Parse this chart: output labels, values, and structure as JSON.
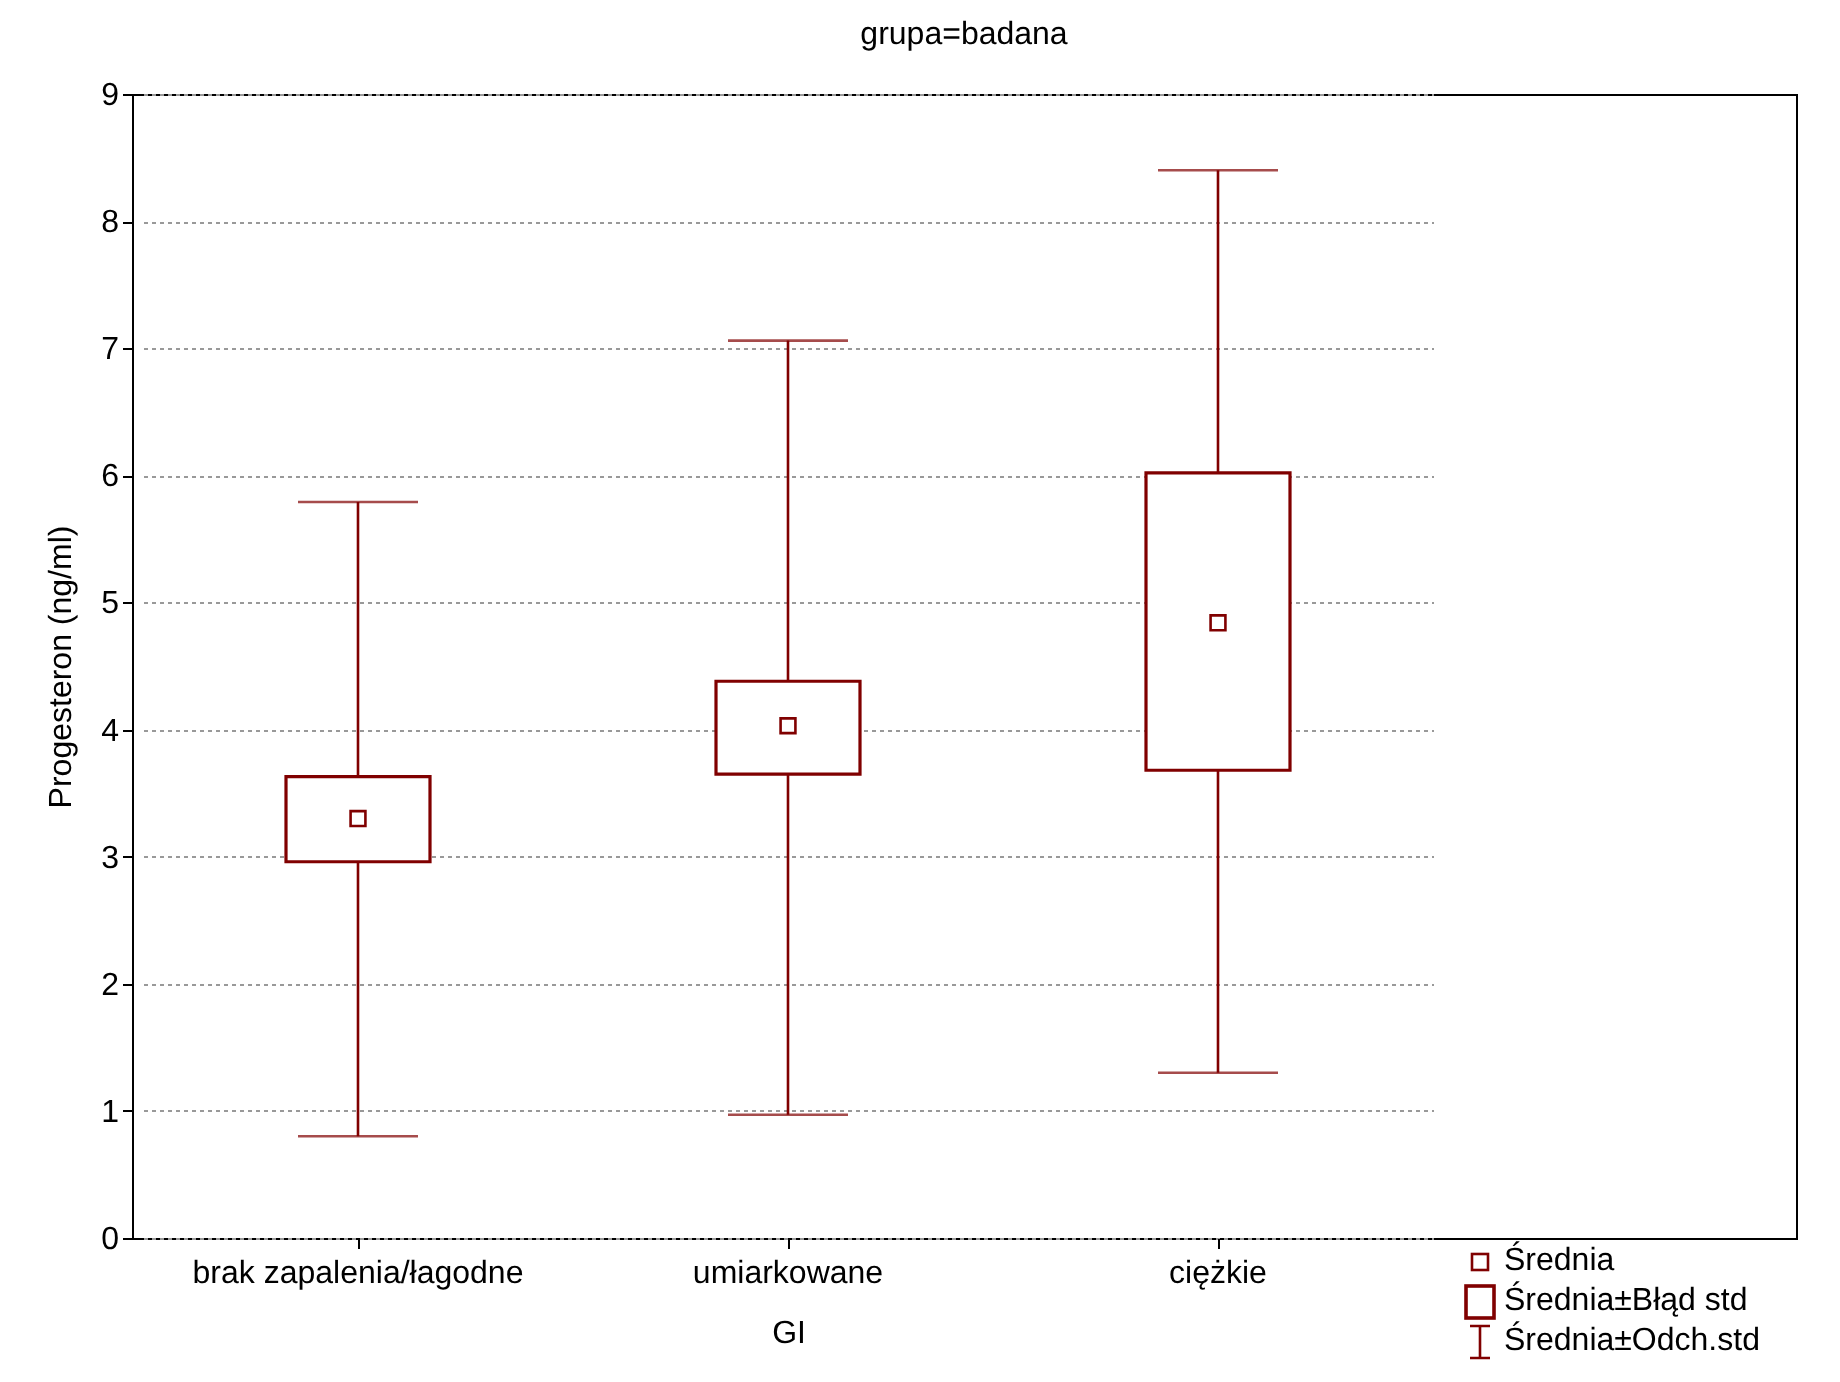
{
  "chart_data": {
    "type": "box",
    "title": "grupa=badana",
    "xlabel": "GI",
    "ylabel": "Progesteron (ng/ml)",
    "categories": [
      "brak zapalenia/łagodne",
      "umiarkowane",
      "ciężkie"
    ],
    "series": [
      {
        "color": "#800000",
        "boxes": [
          {
            "low": 0.8,
            "q1": 2.96,
            "median": 3.3,
            "q3": 3.63,
            "high": 5.79
          },
          {
            "low": 0.97,
            "q1": 3.65,
            "median": 4.03,
            "q3": 4.38,
            "high": 7.06
          },
          {
            "low": 1.3,
            "q1": 3.68,
            "median": 4.84,
            "q3": 6.02,
            "high": 8.4
          }
        ]
      }
    ],
    "ylim": [
      0,
      9
    ],
    "yticks": [
      0,
      1,
      2,
      3,
      4,
      5,
      6,
      7,
      8,
      9
    ],
    "grid": "y",
    "marker": "square",
    "annotations": [
      "Średnia",
      "Średnia±Błąd std",
      "Średnia±Odch.std"
    ]
  }
}
